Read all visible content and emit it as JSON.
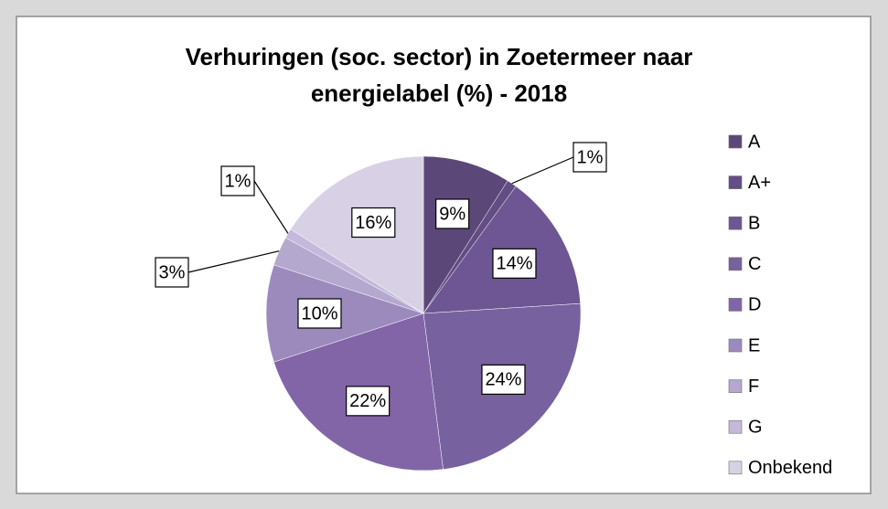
{
  "chart_data": {
    "type": "pie",
    "title": "Verhuringen (soc. sector) in Zoetermeer naar energielabel (%) - 2018",
    "categories": [
      "A",
      "A+",
      "B",
      "C",
      "D",
      "E",
      "F",
      "G",
      "Onbekend"
    ],
    "values": [
      9,
      1,
      14,
      24,
      22,
      10,
      3,
      1,
      16
    ],
    "value_labels": [
      "9%",
      "1%",
      "14%",
      "24%",
      "22%",
      "10%",
      "3%",
      "1%",
      "16%"
    ],
    "colors": [
      "#5b4878",
      "#624d84",
      "#6d5693",
      "#77619f",
      "#8265a7",
      "#9c8abd",
      "#b5a8cf",
      "#c4b9da",
      "#d8d1e6"
    ],
    "legend": "right"
  }
}
